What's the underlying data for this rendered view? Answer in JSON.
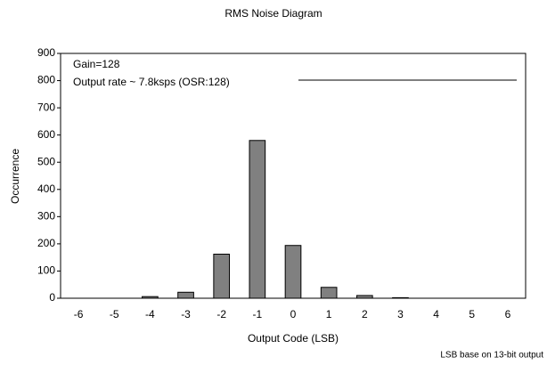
{
  "chart_data": {
    "type": "bar",
    "title": "RMS Noise Diagram",
    "x_label": "Output Code (LSB)",
    "y_label": "Occurrence",
    "annotations": [
      "Gain=128",
      "Output rate ~ 7.8ksps (OSR:128)"
    ],
    "footnote": "LSB base on 13-bit output",
    "categories": [
      "-6",
      "-5",
      "-4",
      "-3",
      "-2",
      "-1",
      "0",
      "1",
      "2",
      "3",
      "4",
      "5",
      "6"
    ],
    "values": [
      0,
      0,
      6,
      22,
      162,
      580,
      194,
      40,
      10,
      2,
      0,
      0,
      0
    ],
    "color": "#808080",
    "ylim": [
      0,
      900
    ],
    "yticks": [
      0,
      100,
      200,
      300,
      400,
      500,
      600,
      700,
      800,
      900
    ],
    "grid": false
  }
}
